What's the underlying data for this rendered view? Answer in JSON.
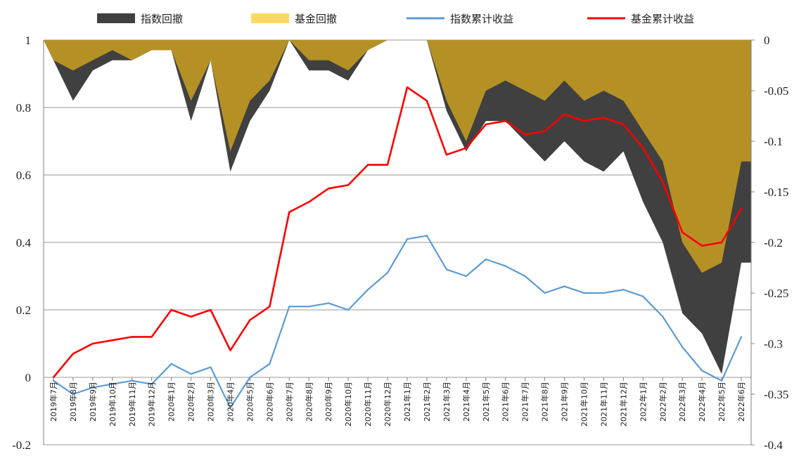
{
  "chart_data": {
    "type": "line",
    "title": "",
    "xlabel": "",
    "ylabel_left": "",
    "ylabel_right": "",
    "left_axis": {
      "min": -0.2,
      "max": 1.0,
      "ticks": [
        1,
        0.8,
        0.6,
        0.4,
        0.2,
        0,
        -0.2
      ],
      "tick_labels": [
        "1",
        "0.8",
        "0.6",
        "0.4",
        "0.2",
        "0",
        "-0.2"
      ]
    },
    "right_axis": {
      "min": -0.4,
      "max": 0.0,
      "ticks": [
        0,
        -0.05,
        -0.1,
        -0.15,
        -0.2,
        -0.25,
        -0.3,
        -0.35,
        -0.4
      ],
      "tick_labels": [
        "0",
        "-0.05",
        "-0.1",
        "-0.15",
        "-0.2",
        "-0.25",
        "-0.3",
        "-0.35",
        "-0.4"
      ]
    },
    "x_months": [
      "2019年7月",
      "2019年8月",
      "2019年9月",
      "2019年10月",
      "2019年11月",
      "2019年12月",
      "2020年1月",
      "2020年2月",
      "2020年3月",
      "2020年4月",
      "2020年5月",
      "2020年6月",
      "2020年7月",
      "2020年8月",
      "2020年9月",
      "2020年10月",
      "2020年11月",
      "2020年12月",
      "2021年1月",
      "2021年2月",
      "2021年3月",
      "2021年4月",
      "2021年5月",
      "2021年6月",
      "2021年7月",
      "2021年8月",
      "2021年9月",
      "2021年10月",
      "2021年11月",
      "2021年12月",
      "2022年1月",
      "2022年2月",
      "2022年3月",
      "2022年4月",
      "2022年5月",
      "2022年6月"
    ],
    "grid": true,
    "legend_position": "top",
    "legend": [
      {
        "key": "index_drawdown",
        "label": "指数回撤",
        "symbol": "bar",
        "color": "#404040"
      },
      {
        "key": "fund_drawdown",
        "label": "基金回撤",
        "symbol": "bar",
        "color": "#FFD966"
      },
      {
        "key": "index_cum",
        "label": "指数累计收益",
        "symbol": "line",
        "color": "#5B9BD5"
      },
      {
        "key": "fund_cum",
        "label": "基金累计收益",
        "symbol": "line",
        "color": "#FF0000"
      }
    ],
    "series": [
      {
        "name": "基金累计收益",
        "axis": "left",
        "color": "#FF0000",
        "values": [
          0,
          0.07,
          0.1,
          0.11,
          0.12,
          0.12,
          0.2,
          0.18,
          0.2,
          0.08,
          0.17,
          0.21,
          0.49,
          0.52,
          0.56,
          0.57,
          0.63,
          0.63,
          0.86,
          0.82,
          0.66,
          0.68,
          0.75,
          0.76,
          0.72,
          0.73,
          0.78,
          0.76,
          0.77,
          0.75,
          0.68,
          0.58,
          0.43,
          0.39,
          0.4,
          0.5
        ]
      },
      {
        "name": "指数累计收益",
        "axis": "left",
        "color": "#5B9BD5",
        "values": [
          -0.01,
          -0.05,
          -0.03,
          -0.02,
          -0.01,
          -0.02,
          0.04,
          0.01,
          0.03,
          -0.09,
          0.0,
          0.04,
          0.21,
          0.21,
          0.22,
          0.2,
          0.26,
          0.31,
          0.41,
          0.42,
          0.32,
          0.3,
          0.35,
          0.33,
          0.3,
          0.25,
          0.27,
          0.25,
          0.25,
          0.26,
          0.24,
          0.18,
          0.09,
          0.02,
          -0.01,
          0.12
        ]
      },
      {
        "name": "指数回撤",
        "axis": "right",
        "color": "#404040",
        "values": [
          -0.02,
          -0.06,
          -0.03,
          -0.02,
          -0.02,
          -0.01,
          -0.01,
          -0.08,
          -0.02,
          -0.13,
          -0.08,
          -0.05,
          0,
          -0.03,
          -0.03,
          -0.04,
          -0.01,
          0,
          0,
          0,
          -0.07,
          -0.11,
          -0.08,
          -0.08,
          -0.1,
          -0.12,
          -0.1,
          -0.12,
          -0.13,
          -0.11,
          -0.16,
          -0.2,
          -0.27,
          -0.29,
          -0.33,
          -0.22
        ]
      },
      {
        "name": "基金回撤",
        "axis": "right",
        "color": "#FFD966",
        "values": [
          -0.02,
          -0.03,
          -0.02,
          -0.01,
          -0.02,
          -0.01,
          -0.01,
          -0.06,
          -0.02,
          -0.11,
          -0.06,
          -0.04,
          0,
          -0.02,
          -0.02,
          -0.03,
          -0.01,
          0,
          0,
          0,
          -0.06,
          -0.1,
          -0.05,
          -0.04,
          -0.05,
          -0.06,
          -0.04,
          -0.06,
          -0.05,
          -0.06,
          -0.09,
          -0.12,
          -0.2,
          -0.23,
          -0.22,
          -0.12
        ]
      }
    ]
  }
}
